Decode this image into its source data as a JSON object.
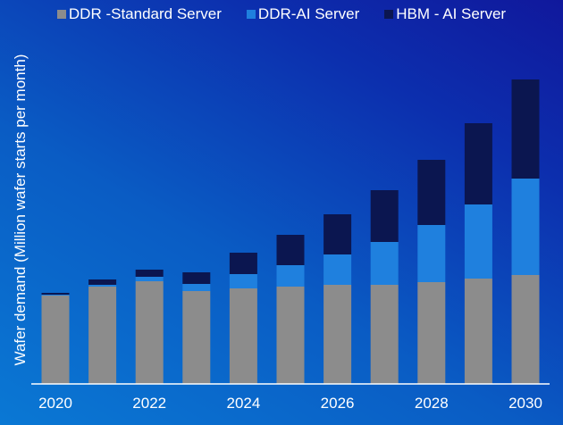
{
  "chart_data": {
    "type": "bar",
    "stacked": true,
    "title": "",
    "xlabel": "",
    "ylabel": "Wafer demand (Million wafer starts per month)",
    "categories": [
      "2020",
      "2021",
      "2022",
      "2023",
      "2024",
      "2025",
      "2026",
      "2027",
      "2028",
      "2029",
      "2030"
    ],
    "x_tick_labels": [
      "2020",
      "2022",
      "2024",
      "2026",
      "2028",
      "2030"
    ],
    "ylim": [
      0,
      3.5
    ],
    "grid": false,
    "legend_position": "top",
    "series": [
      {
        "name": "DDR -Standard Server",
        "color": "#8c8c8c",
        "values": [
          0.99,
          1.09,
          1.15,
          1.04,
          1.07,
          1.09,
          1.11,
          1.11,
          1.14,
          1.18,
          1.22
        ]
      },
      {
        "name": "DDR-AI Server",
        "color": "#1f80de",
        "values": [
          0.01,
          0.02,
          0.05,
          0.08,
          0.16,
          0.24,
          0.34,
          0.48,
          0.64,
          0.83,
          1.08
        ]
      },
      {
        "name": "HBM - AI Server",
        "color": "#0b1650",
        "values": [
          0.02,
          0.06,
          0.08,
          0.13,
          0.24,
          0.34,
          0.45,
          0.58,
          0.73,
          0.91,
          1.11
        ]
      }
    ]
  }
}
